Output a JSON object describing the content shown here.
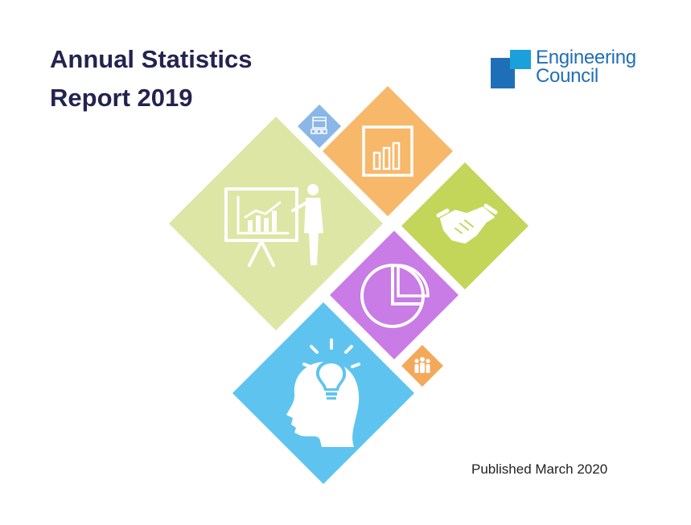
{
  "report": {
    "title_line1": "Annual Statistics",
    "title_line2": "Report 2019",
    "published": "Published March 2020"
  },
  "logo": {
    "line1": "Engineering",
    "line2": "Council",
    "colors": {
      "dark": "#1f6fb8",
      "light": "#1aa0db"
    }
  },
  "tiles": [
    {
      "icon": "presentation-icon",
      "color": "#dde6a4"
    },
    {
      "icon": "calendar-icon",
      "color": "#8bb6e8"
    },
    {
      "icon": "bar-chart-icon",
      "color": "#f7b86a"
    },
    {
      "icon": "handshake-icon",
      "color": "#c3d65a"
    },
    {
      "icon": "pie-chart-icon",
      "color": "#c97be6"
    },
    {
      "icon": "people-icon",
      "color": "#f4a95a"
    },
    {
      "icon": "lightbulb-head-icon",
      "color": "#5ec4ef"
    }
  ]
}
